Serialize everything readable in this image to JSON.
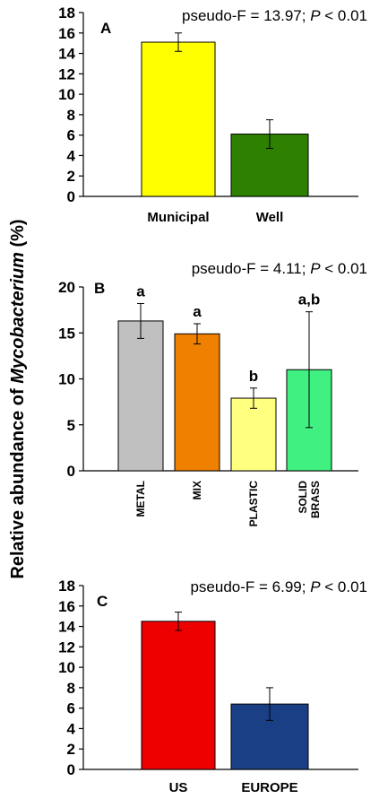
{
  "ylabel_prefix": "Relative abundance of ",
  "ylabel_italic": "Mycobacterium",
  "ylabel_suffix": " (%)",
  "chart_data": [
    {
      "type": "bar",
      "panel": "A",
      "stat_prefix": "pseudo-F = 13.97; ",
      "stat_p": "P",
      "stat_suffix": " < 0.01",
      "categories": [
        "Municipal",
        "Well"
      ],
      "values": [
        15.1,
        6.1
      ],
      "errors": [
        0.9,
        1.4
      ],
      "colors": [
        "#ffff00",
        "#2d8000"
      ],
      "letters": [
        "",
        ""
      ],
      "ylim": [
        0,
        18
      ],
      "yticks": [
        "0",
        "2",
        "4",
        "6",
        "8",
        "10",
        "12",
        "14",
        "16",
        "18"
      ],
      "labels_vertical": false
    },
    {
      "type": "bar",
      "panel": "B",
      "stat_prefix": "pseudo-F = 4.11; ",
      "stat_p": "P",
      "stat_suffix": " < 0.01",
      "categories": [
        "METAL",
        "MIX",
        "PLASTIC",
        "SOLID|BRASS"
      ],
      "values": [
        16.3,
        14.9,
        7.9,
        11.0
      ],
      "errors": [
        1.9,
        1.1,
        1.1,
        6.3
      ],
      "colors": [
        "#c0c0c0",
        "#f08000",
        "#ffff80",
        "#40f080"
      ],
      "letters": [
        "a",
        "a",
        "b",
        "a,b"
      ],
      "ylim": [
        0,
        20
      ],
      "yticks": [
        "0",
        "5",
        "10",
        "15",
        "20"
      ],
      "labels_vertical": true
    },
    {
      "type": "bar",
      "panel": "C",
      "stat_prefix": "pseudo-F = 6.99; ",
      "stat_p": "P",
      "stat_suffix": " < 0.01",
      "categories": [
        "US",
        "EUROPE"
      ],
      "values": [
        14.5,
        6.4
      ],
      "errors": [
        0.9,
        1.6
      ],
      "colors": [
        "#ee0000",
        "#1a3f85"
      ],
      "letters": [
        "",
        ""
      ],
      "ylim": [
        0,
        18
      ],
      "yticks": [
        "0",
        "2",
        "4",
        "6",
        "8",
        "10",
        "12",
        "14",
        "16",
        "18"
      ],
      "labels_vertical": false
    }
  ]
}
